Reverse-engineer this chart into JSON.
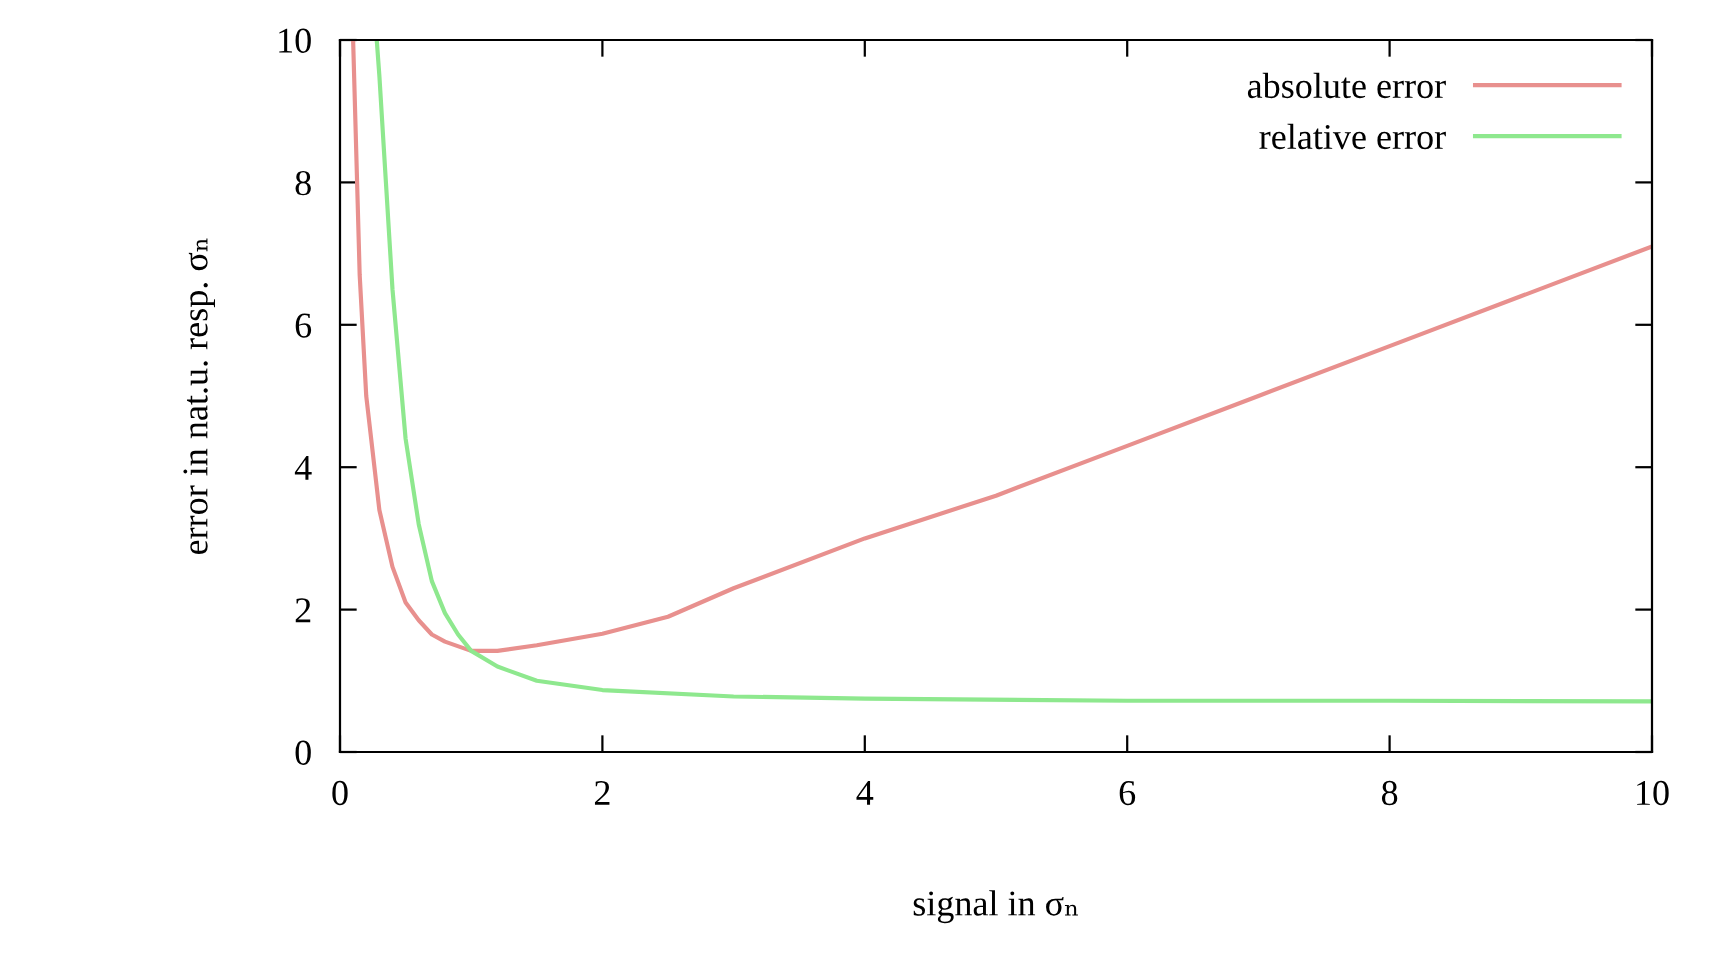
{
  "chart_data": {
    "type": "line",
    "xlabel": "signal in σₙ",
    "ylabel": "error in nat.u. resp. σₙ",
    "xlim": [
      0,
      10
    ],
    "ylim": [
      0,
      10
    ],
    "xticks": [
      0,
      2,
      4,
      6,
      8,
      10
    ],
    "yticks": [
      0,
      2,
      4,
      6,
      8,
      10
    ],
    "grid": false,
    "legend": "top right",
    "marker": "none",
    "line_style": "solid",
    "series": [
      {
        "name": "absolute error",
        "color": "#e8908e",
        "x": [
          0.1,
          0.15,
          0.2,
          0.3,
          0.4,
          0.5,
          0.6,
          0.7,
          0.8,
          1.0,
          1.2,
          1.5,
          2,
          2.5,
          3,
          4,
          5,
          6,
          7,
          8,
          9,
          10
        ],
        "values": [
          10.0,
          6.7,
          5.0,
          3.4,
          2.6,
          2.1,
          1.85,
          1.65,
          1.55,
          1.42,
          1.42,
          1.5,
          1.66,
          1.9,
          2.3,
          3.0,
          3.6,
          4.3,
          5.0,
          5.7,
          6.4,
          7.1
        ]
      },
      {
        "name": "relative error",
        "color": "#8ee88e",
        "x": [
          0.28,
          0.3,
          0.35,
          0.4,
          0.5,
          0.6,
          0.7,
          0.8,
          0.9,
          1.0,
          1.2,
          1.5,
          2,
          3,
          4,
          6,
          8,
          10
        ],
        "values": [
          10.0,
          9.5,
          8.0,
          6.5,
          4.4,
          3.2,
          2.4,
          1.95,
          1.65,
          1.42,
          1.2,
          1.0,
          0.87,
          0.78,
          0.75,
          0.72,
          0.72,
          0.71
        ]
      }
    ]
  }
}
